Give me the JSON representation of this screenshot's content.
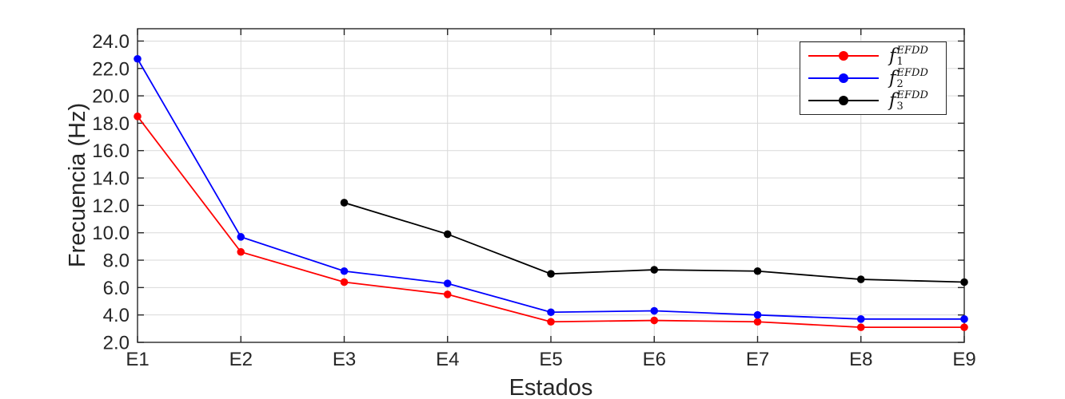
{
  "figure": {
    "background": "#ffffff"
  },
  "chart_data": {
    "type": "line",
    "title": "",
    "xlabel": "Estados",
    "ylabel": "Frecuencia (Hz)",
    "categories": [
      "E1",
      "E2",
      "E3",
      "E4",
      "E5",
      "E6",
      "E7",
      "E8",
      "E9"
    ],
    "yticks": [
      2,
      4,
      6,
      8,
      10,
      12,
      14,
      16,
      18,
      20,
      22,
      24
    ],
    "ytick_labels": [
      "2.0",
      "4.0",
      "6.0",
      "8.0",
      "10.0",
      "12.0",
      "14.0",
      "16.0",
      "18.0",
      "20.0",
      "22.0",
      "24.0"
    ],
    "ylim": [
      2,
      24.9
    ],
    "grid": true,
    "legend_position": "top-right",
    "colors": {
      "grid": "#d9d9d9",
      "axis": "#262626",
      "text": "#262626",
      "background": "#ffffff"
    },
    "series": [
      {
        "id": "f1-EFDD",
        "label_base": "f",
        "label_sub": "1",
        "label_sup": "EFDD",
        "color": "#ff0000",
        "values": [
          18.5,
          8.6,
          6.4,
          5.5,
          3.5,
          3.6,
          3.5,
          3.1,
          3.1
        ]
      },
      {
        "id": "f2-EFDD",
        "label_base": "f",
        "label_sub": "2",
        "label_sup": "EFDD",
        "color": "#0000ff",
        "values": [
          22.7,
          9.7,
          7.2,
          6.3,
          4.2,
          4.3,
          4.0,
          3.7,
          3.7
        ]
      },
      {
        "id": "f3-EFDD",
        "label_base": "f",
        "label_sub": "3",
        "label_sup": "EFDD",
        "color": "#000000",
        "values": [
          null,
          null,
          12.2,
          9.9,
          7.0,
          7.3,
          7.2,
          6.6,
          6.4
        ]
      }
    ]
  }
}
